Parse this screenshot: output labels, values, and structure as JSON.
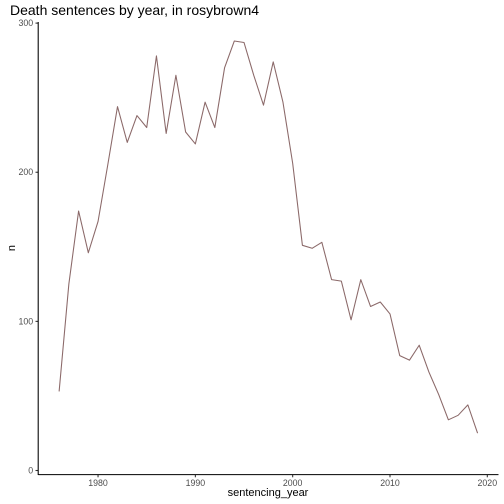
{
  "chart_data": {
    "type": "line",
    "title": "Death sentences by year, in rosybrown4",
    "xlabel": "sentencing_year",
    "ylabel": "n",
    "xlim": [
      1973.85,
      2021.15
    ],
    "ylim": [
      -2.75,
      300.75
    ],
    "x_ticks": [
      1980,
      1990,
      2000,
      2010,
      2020
    ],
    "y_ticks": [
      0,
      100,
      200,
      300
    ],
    "grid": false,
    "legend": "none",
    "line_color": "#8B6969",
    "series": [
      {
        "x": [
          1976,
          1977,
          1978,
          1979,
          1980,
          1981,
          1982,
          1983,
          1984,
          1985,
          1986,
          1987,
          1988,
          1989,
          1990,
          1991,
          1992,
          1993,
          1994,
          1995,
          1996,
          1997,
          1998,
          1999,
          2000,
          2001,
          2002,
          2003,
          2004,
          2005,
          2006,
          2007,
          2008,
          2009,
          2010,
          2011,
          2012,
          2013,
          2014,
          2015,
          2016,
          2017,
          2018,
          2019
        ],
        "values": [
          53,
          125,
          174,
          146,
          167,
          205,
          244,
          220,
          238,
          230,
          278,
          226,
          265,
          227,
          219,
          247,
          230,
          270,
          288,
          287,
          265,
          245,
          274,
          247,
          206,
          151,
          149,
          153,
          128,
          127,
          101,
          128,
          110,
          113,
          105,
          77,
          74,
          84,
          66,
          51,
          34,
          37,
          44,
          25
        ]
      }
    ]
  }
}
